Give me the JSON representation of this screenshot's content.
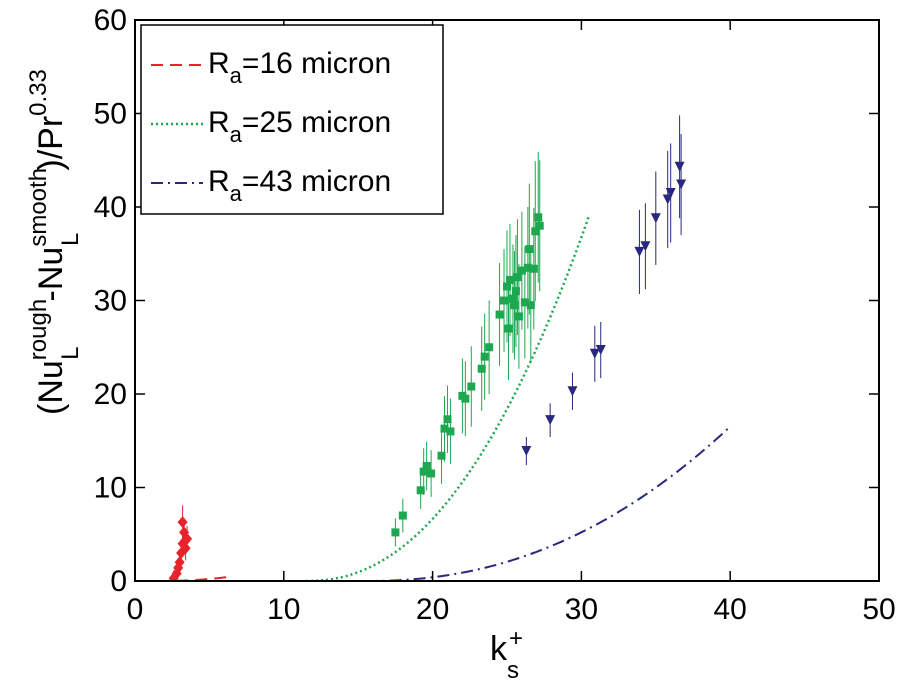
{
  "chart_data": {
    "type": "scatter",
    "xlim": [
      0,
      50
    ],
    "ylim": [
      0,
      60
    ],
    "x_ticks": [
      "0",
      "10",
      "20",
      "30",
      "40",
      "50"
    ],
    "y_ticks": [
      "0",
      "10",
      "20",
      "30",
      "40",
      "50",
      "60"
    ],
    "xlabel": {
      "base": "k",
      "sup": "+",
      "sub": "s"
    },
    "ylabel": {
      "open": "(Nu",
      "sup1": "rough",
      "sub1": "L",
      "mid": "-Nu",
      "sup2": "smooth",
      "sub2": "L",
      "close": ")/Pr",
      "sup3": "0.33"
    },
    "legend_position": "top-left",
    "grid": false,
    "series": [
      {
        "legend_base": "R",
        "legend_sub": "a",
        "legend_rest": "=16 micron",
        "color": "#e8232b",
        "line_style": "dashed",
        "marker": "diamond",
        "fit": {
          "a": 2.2,
          "p": 2.2,
          "x0": 1.5,
          "x1": 6.3
        },
        "points": [
          {
            "x": 2.6,
            "y": 0.3,
            "err": 0.8
          },
          {
            "x": 2.8,
            "y": 0.8,
            "err": 1.0
          },
          {
            "x": 2.9,
            "y": 1.4,
            "err": 1.0
          },
          {
            "x": 3.0,
            "y": 2.0,
            "err": 1.2
          },
          {
            "x": 3.1,
            "y": 3.0,
            "err": 1.2
          },
          {
            "x": 3.2,
            "y": 4.0,
            "err": 1.4
          },
          {
            "x": 3.3,
            "y": 5.2,
            "err": 1.5
          },
          {
            "x": 3.2,
            "y": 6.3,
            "err": 1.8
          },
          {
            "x": 3.4,
            "y": 3.5,
            "err": 1.3
          },
          {
            "x": 3.5,
            "y": 4.5,
            "err": 1.4
          }
        ]
      },
      {
        "legend_base": "R",
        "legend_sub": "a",
        "legend_rest": "=25 micron",
        "color": "#1ba84f",
        "line_style": "dotted",
        "marker": "square",
        "fit": {
          "a": 9.5,
          "p": 2.2,
          "x0": 11.5,
          "x1": 30.5
        },
        "points": [
          {
            "x": 17.5,
            "y": 5.2,
            "err": 1.5
          },
          {
            "x": 18.0,
            "y": 7.0,
            "err": 1.8
          },
          {
            "x": 19.2,
            "y": 9.7,
            "err": 2.0
          },
          {
            "x": 19.4,
            "y": 11.7,
            "err": 2.5
          },
          {
            "x": 19.6,
            "y": 12.3,
            "err": 2.6
          },
          {
            "x": 19.9,
            "y": 11.5,
            "err": 2.5
          },
          {
            "x": 20.6,
            "y": 13.4,
            "err": 3.0
          },
          {
            "x": 20.8,
            "y": 16.3,
            "err": 3.5
          },
          {
            "x": 21.0,
            "y": 17.3,
            "err": 3.6
          },
          {
            "x": 21.2,
            "y": 16.0,
            "err": 3.5
          },
          {
            "x": 22.0,
            "y": 19.8,
            "err": 4.0
          },
          {
            "x": 22.2,
            "y": 19.5,
            "err": 4.0
          },
          {
            "x": 22.6,
            "y": 20.8,
            "err": 4.3
          },
          {
            "x": 23.3,
            "y": 22.7,
            "err": 4.5
          },
          {
            "x": 23.5,
            "y": 24.0,
            "err": 4.6
          },
          {
            "x": 23.8,
            "y": 25.0,
            "err": 5.0
          },
          {
            "x": 24.5,
            "y": 28.5,
            "err": 5.5
          },
          {
            "x": 24.8,
            "y": 30.0,
            "err": 5.5
          },
          {
            "x": 25.0,
            "y": 31.5,
            "err": 6.0
          },
          {
            "x": 25.1,
            "y": 27.0,
            "err": 5.5
          },
          {
            "x": 25.2,
            "y": 32.2,
            "err": 6.0
          },
          {
            "x": 25.4,
            "y": 30.2,
            "err": 5.8
          },
          {
            "x": 25.5,
            "y": 29.5,
            "err": 5.8
          },
          {
            "x": 25.6,
            "y": 31.0,
            "err": 6.0
          },
          {
            "x": 25.7,
            "y": 32.5,
            "err": 6.2
          },
          {
            "x": 25.8,
            "y": 28.3,
            "err": 5.6
          },
          {
            "x": 26.0,
            "y": 33.2,
            "err": 6.3
          },
          {
            "x": 26.2,
            "y": 29.8,
            "err": 6.0
          },
          {
            "x": 26.4,
            "y": 33.5,
            "err": 6.5
          },
          {
            "x": 26.5,
            "y": 35.5,
            "err": 7.0
          },
          {
            "x": 26.6,
            "y": 29.5,
            "err": 6.0
          },
          {
            "x": 26.8,
            "y": 33.4,
            "err": 6.5
          },
          {
            "x": 26.9,
            "y": 37.4,
            "err": 7.5
          },
          {
            "x": 27.1,
            "y": 38.9,
            "err": 7.0
          },
          {
            "x": 27.2,
            "y": 38.0,
            "err": 7.0
          }
        ]
      },
      {
        "legend_base": "R",
        "legend_sub": "a",
        "legend_rest": "=43 micron",
        "color": "#28287f",
        "line_style": "dashdot",
        "marker": "triangle-down",
        "fit": {
          "a": 2.3,
          "p": 2.2,
          "x0": 15.5,
          "x1": 40.0
        },
        "points": [
          {
            "x": 26.3,
            "y": 13.9,
            "err": 1.5
          },
          {
            "x": 27.9,
            "y": 17.2,
            "err": 1.8
          },
          {
            "x": 29.4,
            "y": 20.3,
            "err": 2.0
          },
          {
            "x": 30.9,
            "y": 24.3,
            "err": 3.0
          },
          {
            "x": 31.3,
            "y": 24.7,
            "err": 3.0
          },
          {
            "x": 33.9,
            "y": 35.2,
            "err": 4.5
          },
          {
            "x": 34.3,
            "y": 35.8,
            "err": 4.6
          },
          {
            "x": 35.0,
            "y": 38.8,
            "err": 5.0
          },
          {
            "x": 35.8,
            "y": 40.8,
            "err": 5.2
          },
          {
            "x": 36.0,
            "y": 41.5,
            "err": 5.3
          },
          {
            "x": 36.6,
            "y": 44.3,
            "err": 5.5
          },
          {
            "x": 36.7,
            "y": 42.4,
            "err": 5.4
          }
        ]
      }
    ]
  }
}
